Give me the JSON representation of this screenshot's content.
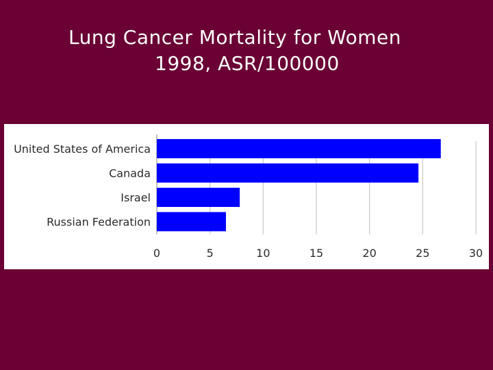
{
  "slide": {
    "background": "#6a0034",
    "title_line1": "Lung Cancer Mortality for Women",
    "title_line2": "1998, ASR/100000"
  },
  "chart_data": {
    "type": "bar",
    "orientation": "horizontal",
    "categories": [
      "United States of America",
      "Canada",
      "Israel",
      "Russian Federation"
    ],
    "values": [
      26.7,
      24.6,
      7.8,
      6.5
    ],
    "xlim": [
      0,
      30
    ],
    "ticks": [
      0,
      5,
      10,
      15,
      20,
      25,
      30
    ],
    "grid": true,
    "bar_color": "#0000ff"
  }
}
